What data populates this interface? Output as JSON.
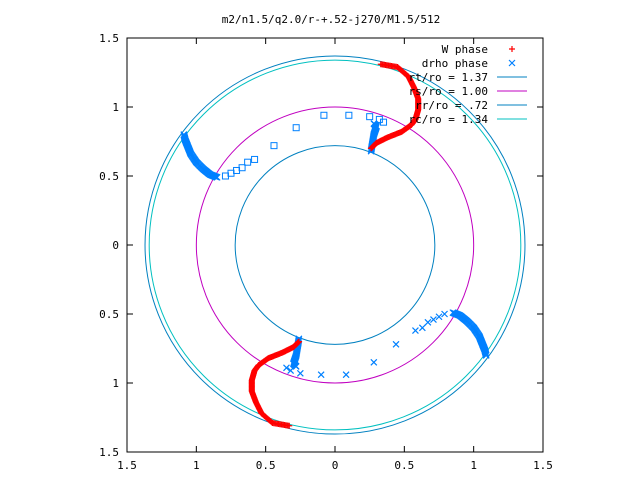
{
  "chart_data": {
    "type": "scatter",
    "title": "m2/n1.5/q2.0/r-+.52-j270/M1.5/512",
    "xlabel": "",
    "ylabel": "",
    "xlim": [
      -1.5,
      1.5
    ],
    "ylim": [
      -1.5,
      1.5
    ],
    "x_ticks": [
      -1.5,
      -1,
      -0.5,
      0,
      0.5,
      1,
      1.5
    ],
    "y_ticks": [
      -1.5,
      -1,
      -0.5,
      0,
      0.5,
      1,
      1.5
    ],
    "x_tick_labels": [
      "1.5",
      "1",
      "0.5",
      "0",
      "0.5",
      "1",
      "1.5"
    ],
    "y_tick_labels": [
      "1.5",
      "1",
      "0.5",
      "0",
      "0.5",
      "1",
      "1.5"
    ],
    "grid": false,
    "legend_position": "top-right",
    "colors": {
      "w_phase": "#ff0000",
      "drho_phase": "#0080ff",
      "rt": "#0080c0",
      "rs": "#c000c0",
      "rr": "#0080c0",
      "rc": "#00c0c0"
    },
    "series": [
      {
        "name": "W phase",
        "marker": "+",
        "arms": [
          [
            [
              0.33,
              1.31
            ],
            [
              0.45,
              1.29
            ],
            [
              0.53,
              1.22
            ],
            [
              0.57,
              1.14
            ],
            [
              0.6,
              1.06
            ],
            [
              0.6,
              0.98
            ],
            [
              0.58,
              0.91
            ],
            [
              0.55,
              0.87
            ],
            [
              0.48,
              0.82
            ],
            [
              0.38,
              0.78
            ],
            [
              0.3,
              0.74
            ],
            [
              0.26,
              0.7
            ]
          ],
          [
            [
              -0.33,
              -1.31
            ],
            [
              -0.45,
              -1.29
            ],
            [
              -0.53,
              -1.22
            ],
            [
              -0.57,
              -1.14
            ],
            [
              -0.6,
              -1.06
            ],
            [
              -0.6,
              -0.98
            ],
            [
              -0.58,
              -0.91
            ],
            [
              -0.55,
              -0.87
            ],
            [
              -0.48,
              -0.82
            ],
            [
              -0.38,
              -0.78
            ],
            [
              -0.3,
              -0.74
            ],
            [
              -0.26,
              -0.7
            ]
          ]
        ]
      },
      {
        "name": "drho phase",
        "marker": "x",
        "arms": [
          [
            [
              0.85,
              -0.49
            ],
            [
              0.9,
              -0.51
            ],
            [
              0.95,
              -0.55
            ],
            [
              1.0,
              -0.6
            ],
            [
              1.04,
              -0.66
            ],
            [
              1.06,
              -0.71
            ],
            [
              1.08,
              -0.76
            ],
            [
              1.09,
              -0.8
            ]
          ],
          [
            [
              -0.85,
              0.49
            ],
            [
              -0.9,
              0.51
            ],
            [
              -0.95,
              0.55
            ],
            [
              -1.0,
              0.6
            ],
            [
              -1.04,
              0.66
            ],
            [
              -1.06,
              0.71
            ],
            [
              -1.08,
              0.76
            ],
            [
              -1.09,
              0.8
            ]
          ],
          [
            [
              0.26,
              0.68
            ],
            [
              0.27,
              0.74
            ],
            [
              0.28,
              0.8
            ],
            [
              0.3,
              0.86
            ],
            [
              0.28,
              0.88
            ]
          ],
          [
            [
              -0.26,
              -0.68
            ],
            [
              -0.27,
              -0.74
            ],
            [
              -0.28,
              -0.8
            ],
            [
              -0.3,
              -0.86
            ],
            [
              -0.28,
              -0.88
            ]
          ]
        ],
        "sparse": [
          [
            0.1,
            0.94
          ],
          [
            0.25,
            0.93
          ],
          [
            0.32,
            0.91
          ],
          [
            0.35,
            0.89
          ],
          [
            -0.08,
            0.94
          ],
          [
            -0.28,
            0.85
          ],
          [
            -0.44,
            0.72
          ],
          [
            -0.58,
            0.62
          ],
          [
            -0.63,
            0.6
          ],
          [
            -0.67,
            0.56
          ],
          [
            -0.71,
            0.54
          ],
          [
            -0.75,
            0.52
          ],
          [
            -0.79,
            0.5
          ],
          [
            -0.1,
            -0.94
          ],
          [
            -0.25,
            -0.93
          ],
          [
            -0.32,
            -0.91
          ],
          [
            -0.35,
            -0.89
          ],
          [
            0.08,
            -0.94
          ],
          [
            0.28,
            -0.85
          ],
          [
            0.44,
            -0.72
          ],
          [
            0.58,
            -0.62
          ],
          [
            0.63,
            -0.6
          ],
          [
            0.67,
            -0.56
          ],
          [
            0.71,
            -0.54
          ],
          [
            0.75,
            -0.52
          ],
          [
            0.79,
            -0.5
          ]
        ]
      }
    ],
    "circles": [
      {
        "name": "rt/ro = 1.37",
        "radius": 1.37,
        "color": "#0080c0"
      },
      {
        "name": "rs/ro = 1.00",
        "radius": 1.0,
        "color": "#c000c0"
      },
      {
        "name": "rr/ro = .72",
        "radius": 0.72,
        "color": "#0080c0"
      },
      {
        "name": "rc/ro = 1.34",
        "radius": 1.34,
        "color": "#00c0c0"
      }
    ]
  }
}
